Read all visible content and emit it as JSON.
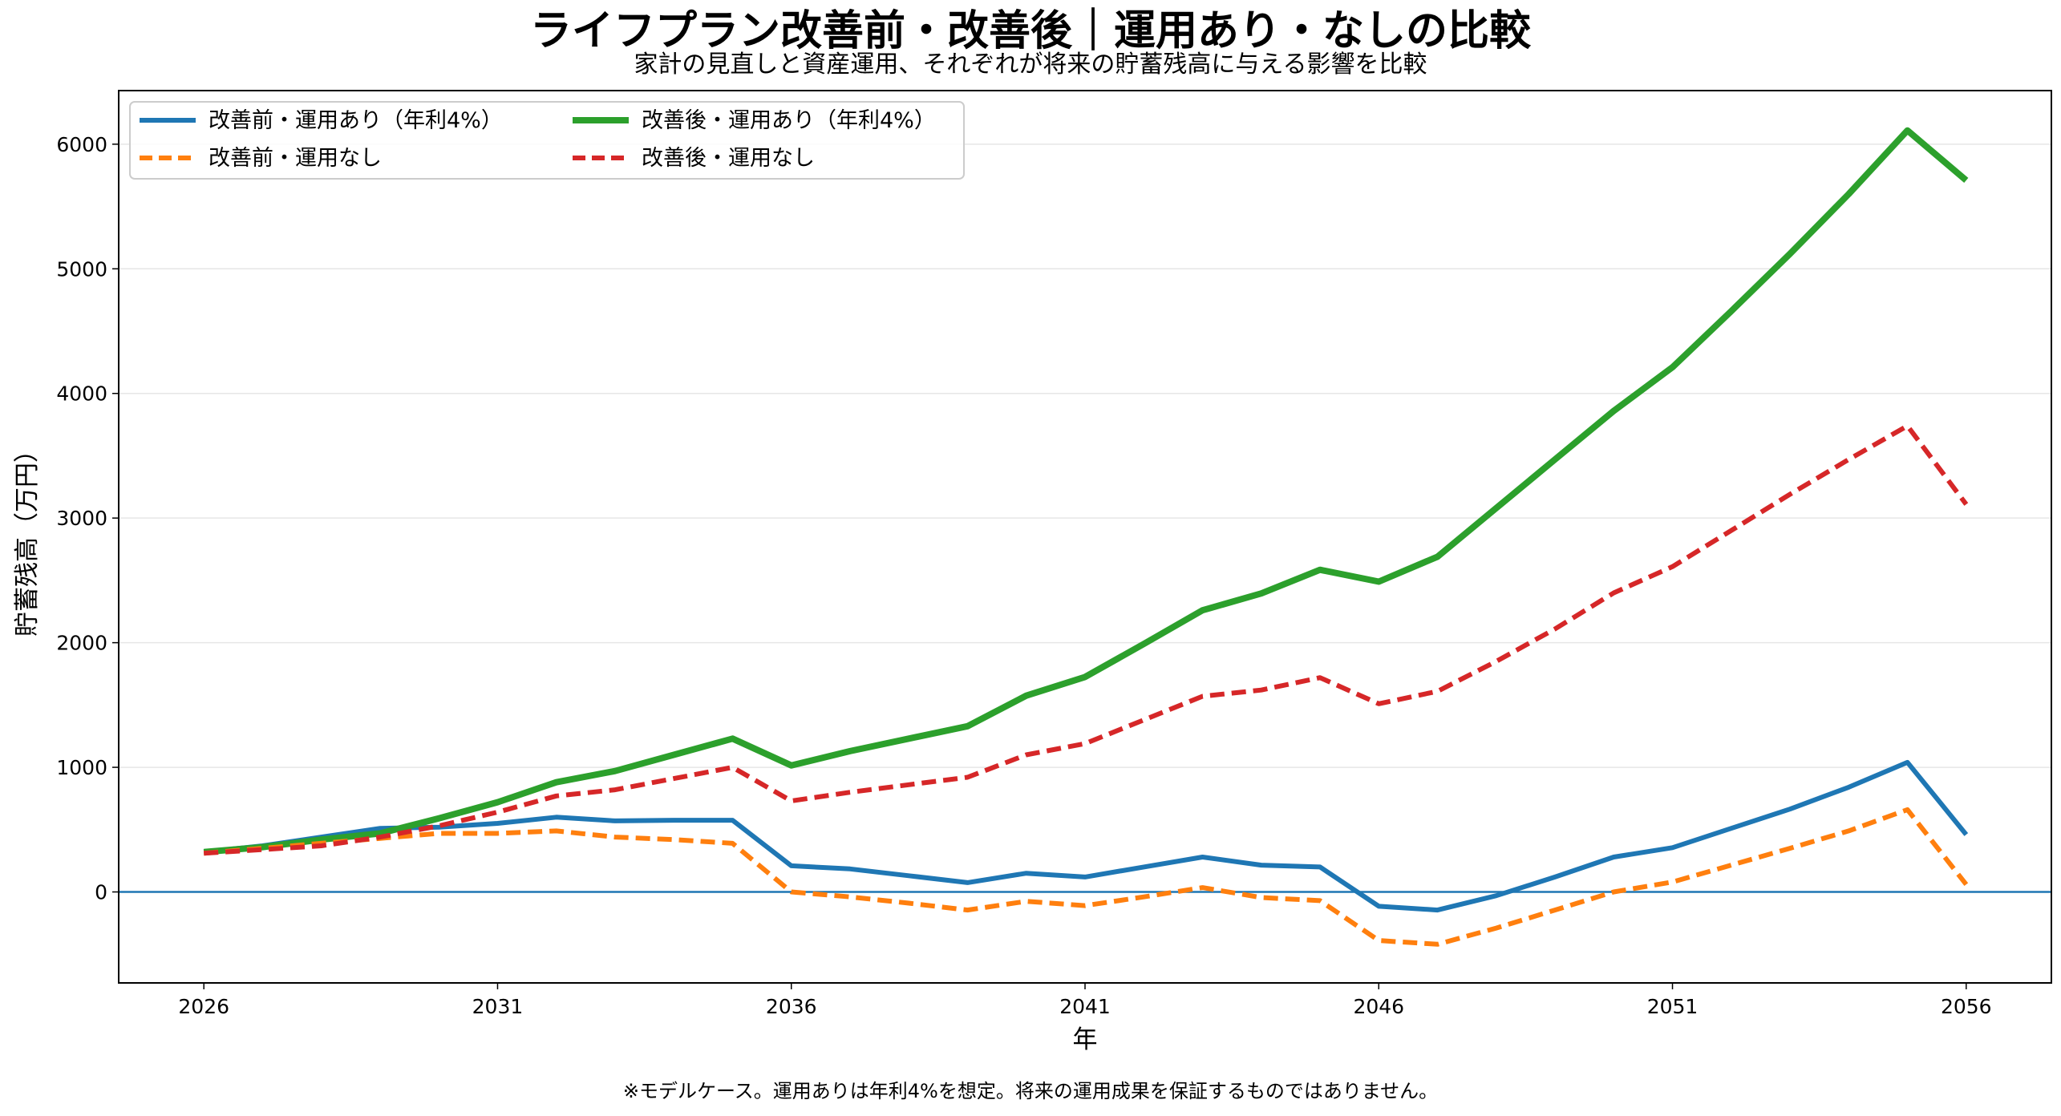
{
  "chart_data": {
    "type": "line",
    "title": "ライフプラン改善前・改善後｜運用あり・なしの比較",
    "subtitle": "家計の見直しと資産運用、それぞれが将来の貯蓄残高に与える影響を比較",
    "xlabel": "年",
    "ylabel": "貯蓄残高（万円）",
    "note": "※モデルケース。運用ありは年利4%を想定。将来の運用成果を保証するものではありません。",
    "x": [
      2026,
      2027,
      2028,
      2029,
      2030,
      2031,
      2032,
      2033,
      2034,
      2035,
      2036,
      2037,
      2038,
      2039,
      2040,
      2041,
      2042,
      2043,
      2044,
      2045,
      2046,
      2047,
      2048,
      2049,
      2050,
      2051,
      2052,
      2053,
      2054,
      2055,
      2056
    ],
    "xticks": [
      "2026",
      "2031",
      "2036",
      "2041",
      "2046",
      "2051",
      "2056"
    ],
    "xlim": [
      2024.55,
      2057.45
    ],
    "ylim": [
      -730,
      6430
    ],
    "yticks": [
      "0",
      "1000",
      "2000",
      "3000",
      "4000",
      "5000",
      "6000"
    ],
    "grid": "y",
    "legend_position": "top-left",
    "series": [
      {
        "name": "改善前・運用あり（年利4%）",
        "color": "#1f77b4",
        "style": "solid",
        "values": [
          320,
          370,
          440,
          510,
          520,
          550,
          600,
          570,
          575,
          575,
          210,
          185,
          130,
          75,
          150,
          120,
          200,
          280,
          215,
          200,
          -115,
          -145,
          -30,
          120,
          280,
          355,
          510,
          665,
          840,
          1040,
          460
        ]
      },
      {
        "name": "改善後・運用あり（年利4%）",
        "color": "#2ca02c",
        "style": "solid-thick",
        "values": [
          320,
          360,
          420,
          470,
          590,
          720,
          880,
          970,
          1100,
          1230,
          1015,
          1130,
          1230,
          1330,
          1575,
          1725,
          1990,
          2260,
          2395,
          2585,
          2490,
          2690,
          3080,
          3470,
          3860,
          4210,
          4660,
          5120,
          5600,
          6110,
          5710
        ]
      },
      {
        "name": "改善前・運用なし",
        "color": "#ff7f0e",
        "style": "dashed",
        "values": [
          310,
          350,
          390,
          430,
          470,
          470,
          490,
          440,
          420,
          390,
          0,
          -40,
          -90,
          -145,
          -75,
          -110,
          -40,
          35,
          -45,
          -70,
          -390,
          -420,
          -290,
          -145,
          0,
          80,
          215,
          350,
          490,
          660,
          60
        ]
      },
      {
        "name": "改善後・運用なし",
        "color": "#d62728",
        "style": "dashed",
        "values": [
          310,
          340,
          370,
          440,
          530,
          640,
          770,
          820,
          910,
          1000,
          730,
          800,
          860,
          920,
          1100,
          1190,
          1380,
          1570,
          1620,
          1720,
          1510,
          1610,
          1850,
          2110,
          2400,
          2610,
          2900,
          3190,
          3470,
          3740,
          3110
        ]
      }
    ]
  }
}
